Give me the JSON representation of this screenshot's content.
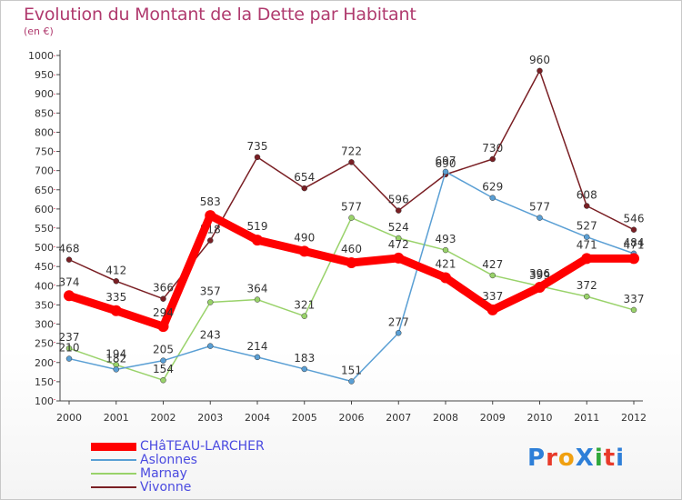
{
  "title": "Evolution du Montant de la Dette par Habitant",
  "unit_label": "(en €)",
  "logo_text": "ProXiti",
  "logo_colors": [
    "#2e7fd8",
    "#e83a2a",
    "#f0a010",
    "#2e7fd8",
    "#2fa83a",
    "#e83a2a",
    "#2e7fd8"
  ],
  "chart_data": {
    "type": "line",
    "title": "Evolution du Montant de la Dette par Habitant",
    "ylabel": "(en €)",
    "xlabel": "",
    "ylim": [
      100,
      1000
    ],
    "yticks": [
      100,
      150,
      200,
      250,
      300,
      350,
      400,
      450,
      500,
      550,
      600,
      650,
      700,
      750,
      800,
      850,
      900,
      950,
      1000
    ],
    "x": [
      "2000",
      "2001",
      "2002",
      "2003",
      "2004",
      "2005",
      "2006",
      "2007",
      "2008",
      "2009",
      "2010",
      "2011",
      "2012"
    ],
    "grid": false,
    "legend_position": "bottom-left",
    "series": [
      {
        "name": "Vivonne",
        "color": "#7a1f24",
        "values": [
          468,
          412,
          366,
          518,
          735,
          654,
          722,
          596,
          690,
          730,
          960,
          608,
          546
        ]
      },
      {
        "name": "Marnay",
        "color": "#99d26a",
        "values": [
          237,
          194,
          154,
          357,
          364,
          321,
          577,
          524,
          493,
          427,
          399,
          372,
          337
        ]
      },
      {
        "name": "Aslonnes",
        "color": "#5a9fd4",
        "values": [
          210,
          182,
          205,
          243,
          214,
          183,
          151,
          277,
          697,
          629,
          577,
          527,
          484
        ]
      },
      {
        "name": "CHâTEAU-LARCHER",
        "color": "#ff0000",
        "values": [
          374,
          335,
          294,
          583,
          519,
          490,
          460,
          472,
          421,
          337,
          396,
          471,
          471
        ]
      }
    ],
    "legend_order": [
      "CHâTEAU-LARCHER",
      "Aslonnes",
      "Marnay",
      "Vivonne"
    ]
  }
}
